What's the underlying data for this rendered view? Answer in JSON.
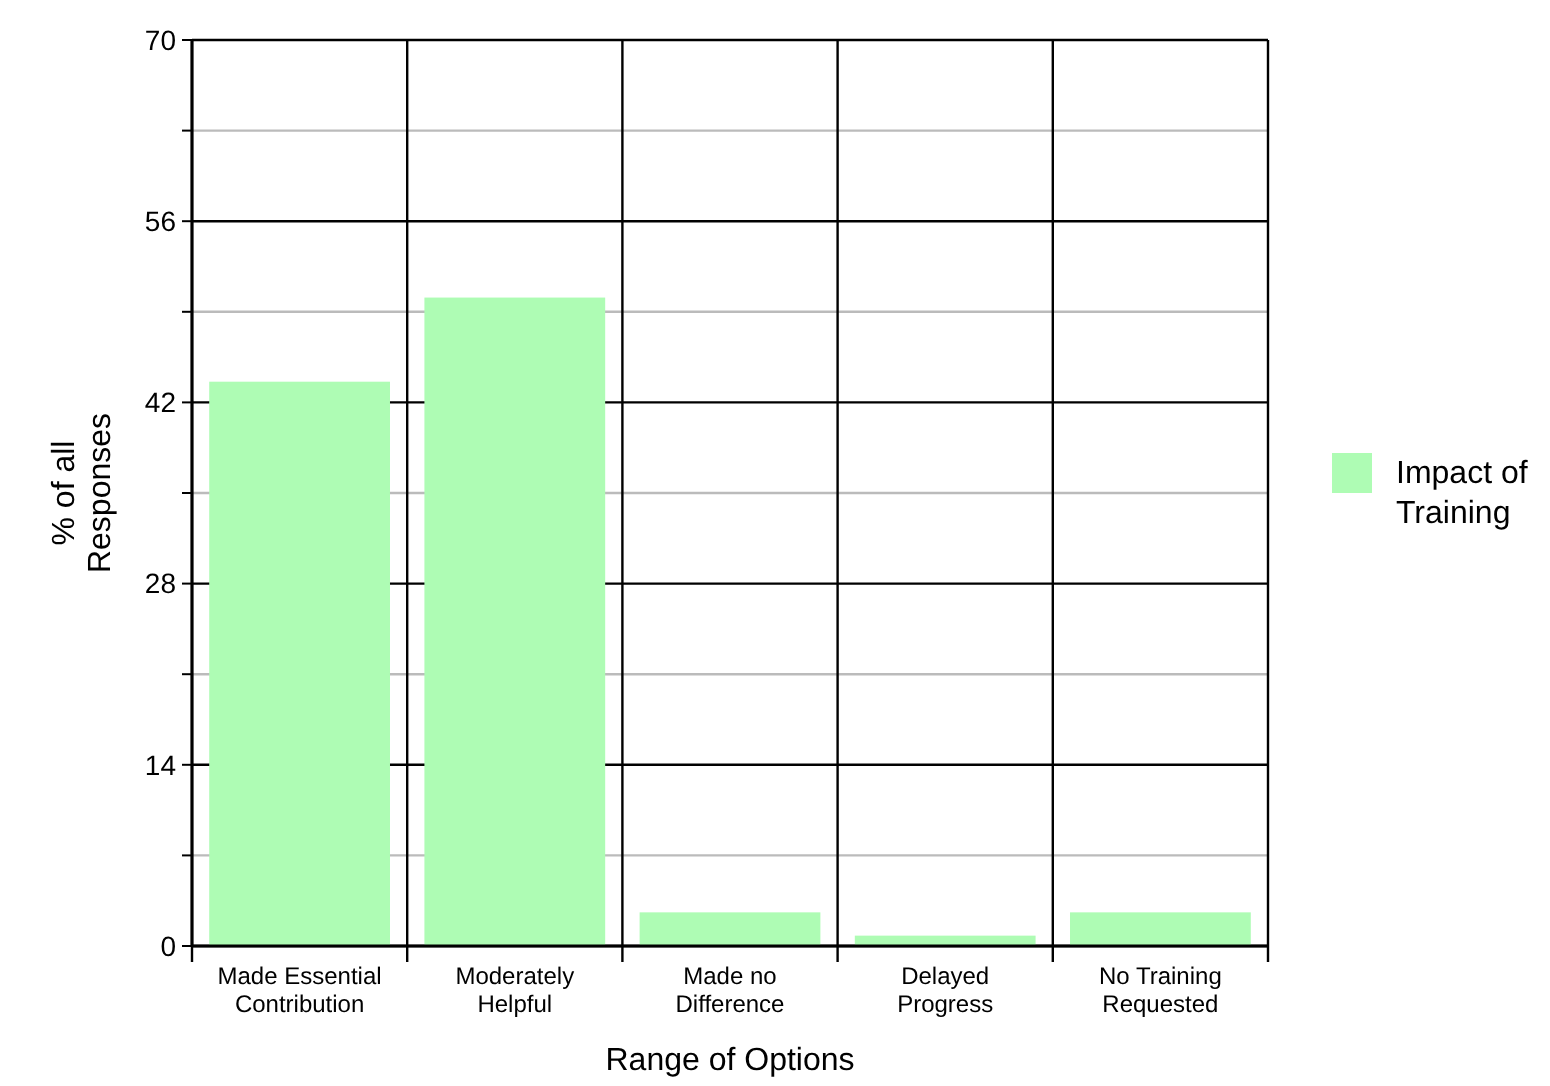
{
  "chart_data": {
    "type": "bar",
    "xlabel": "Range of Options",
    "ylabel": "% of all Responses",
    "categories": [
      "Made Essential Contribution",
      "Moderately Helpful",
      "Made no Difference",
      "Delayed Progress",
      "No Training Requested"
    ],
    "series": [
      {
        "name": "Impact of Training",
        "color": "#aefcb4",
        "values": [
          43.6,
          50.1,
          2.6,
          0.8,
          2.6
        ]
      }
    ],
    "ylim": [
      0,
      70
    ],
    "yticks": [
      0,
      {
        "value": 7,
        "label": null
      },
      14,
      {
        "value": 21,
        "label": null
      },
      28,
      {
        "value": 35,
        "label": null
      },
      42,
      {
        "value": 49,
        "label": null
      },
      56,
      {
        "value": 63,
        "label": null
      },
      70
    ],
    "grid": true,
    "legend": "right"
  }
}
